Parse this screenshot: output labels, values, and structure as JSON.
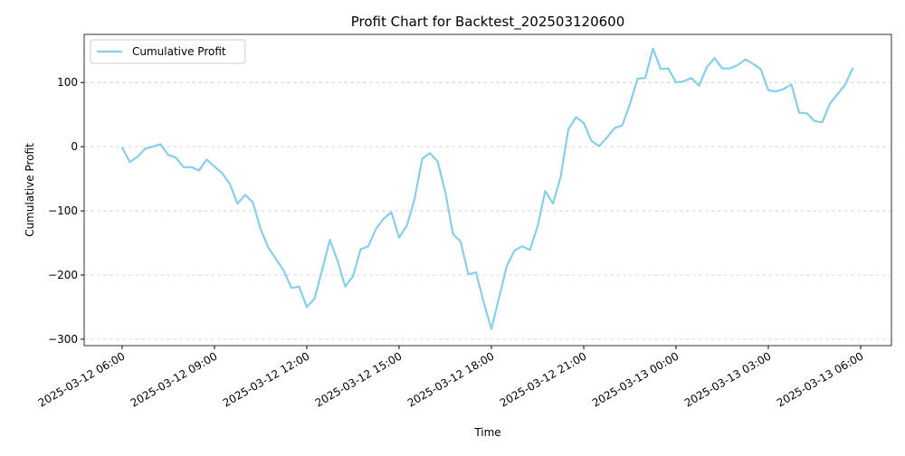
{
  "chart_data": {
    "type": "line",
    "title": "Profit Chart for Backtest_202503120600",
    "x_label": "Time",
    "y_label": "Cumulative Profit",
    "x": [
      "2025-03-12 06:00",
      "2025-03-12 06:15",
      "2025-03-12 06:30",
      "2025-03-12 06:45",
      "2025-03-12 07:00",
      "2025-03-12 07:15",
      "2025-03-12 07:30",
      "2025-03-12 07:45",
      "2025-03-12 08:00",
      "2025-03-12 08:15",
      "2025-03-12 08:30",
      "2025-03-12 08:45",
      "2025-03-12 09:00",
      "2025-03-12 09:15",
      "2025-03-12 09:30",
      "2025-03-12 09:45",
      "2025-03-12 10:00",
      "2025-03-12 10:15",
      "2025-03-12 10:30",
      "2025-03-12 10:45",
      "2025-03-12 11:00",
      "2025-03-12 11:15",
      "2025-03-12 11:30",
      "2025-03-12 11:45",
      "2025-03-12 12:00",
      "2025-03-12 12:15",
      "2025-03-12 12:30",
      "2025-03-12 12:45",
      "2025-03-12 13:00",
      "2025-03-12 13:15",
      "2025-03-12 13:30",
      "2025-03-12 13:45",
      "2025-03-12 14:00",
      "2025-03-12 14:15",
      "2025-03-12 14:30",
      "2025-03-12 14:45",
      "2025-03-12 15:00",
      "2025-03-12 15:15",
      "2025-03-12 15:30",
      "2025-03-12 15:45",
      "2025-03-12 16:00",
      "2025-03-12 16:15",
      "2025-03-12 16:30",
      "2025-03-12 16:45",
      "2025-03-12 17:00",
      "2025-03-12 17:15",
      "2025-03-12 17:30",
      "2025-03-12 17:45",
      "2025-03-12 18:00",
      "2025-03-12 18:15",
      "2025-03-12 18:30",
      "2025-03-12 18:45",
      "2025-03-12 19:00",
      "2025-03-12 19:15",
      "2025-03-12 19:30",
      "2025-03-12 19:45",
      "2025-03-12 20:00",
      "2025-03-12 20:15",
      "2025-03-12 20:30",
      "2025-03-12 20:45",
      "2025-03-12 21:00",
      "2025-03-12 21:15",
      "2025-03-12 21:30",
      "2025-03-12 21:45",
      "2025-03-12 22:00",
      "2025-03-12 22:15",
      "2025-03-12 22:30",
      "2025-03-12 22:45",
      "2025-03-12 23:00",
      "2025-03-12 23:15",
      "2025-03-12 23:30",
      "2025-03-12 23:45",
      "2025-03-13 00:00",
      "2025-03-13 00:15",
      "2025-03-13 00:30",
      "2025-03-13 00:45",
      "2025-03-13 01:00",
      "2025-03-13 01:15",
      "2025-03-13 01:30",
      "2025-03-13 01:45",
      "2025-03-13 02:00",
      "2025-03-13 02:15",
      "2025-03-13 02:30",
      "2025-03-13 02:45",
      "2025-03-13 03:00",
      "2025-03-13 03:15",
      "2025-03-13 03:30",
      "2025-03-13 03:45",
      "2025-03-13 04:00",
      "2025-03-13 04:15",
      "2025-03-13 04:30",
      "2025-03-13 04:45",
      "2025-03-13 05:00",
      "2025-03-13 05:15",
      "2025-03-13 05:30",
      "2025-03-13 05:45"
    ],
    "series": [
      {
        "name": "Cumulative Profit",
        "color": "#87ceeb",
        "values": [
          -1,
          -24,
          -16,
          -3,
          0,
          4,
          -13,
          -17,
          -32,
          -32,
          -37,
          -20,
          -31,
          -41,
          -58,
          -89,
          -75,
          -87,
          -128,
          -157,
          -175,
          -193,
          -220,
          -218,
          -250,
          -237,
          -192,
          -145,
          -178,
          -218,
          -202,
          -160,
          -155,
          -128,
          -112,
          -102,
          -142,
          -123,
          -82,
          -19,
          -10,
          -23,
          -70,
          -136,
          -148,
          -199,
          -196,
          -243,
          -284,
          -235,
          -186,
          -162,
          -155,
          -161,
          -124,
          -69,
          -89,
          -47,
          27,
          46,
          37,
          9,
          1,
          14,
          29,
          33,
          66,
          106,
          107,
          153,
          121,
          122,
          100,
          102,
          107,
          95,
          124,
          138,
          122,
          122,
          127,
          136,
          129,
          121,
          88,
          86,
          90,
          97,
          53,
          52,
          40,
          38,
          67,
          82,
          97,
          123
        ]
      }
    ],
    "xlim": [
      "2025-03-12 04:46",
      "2025-03-13 07:00"
    ],
    "xticks": [
      "2025-03-12 06:00",
      "2025-03-12 09:00",
      "2025-03-12 12:00",
      "2025-03-12 15:00",
      "2025-03-12 18:00",
      "2025-03-12 21:00",
      "2025-03-13 00:00",
      "2025-03-13 03:00",
      "2025-03-13 06:00"
    ],
    "ylim": [
      -310,
      175
    ],
    "yticks": [
      {
        "value": -300,
        "label": "−300"
      },
      {
        "value": -200,
        "label": "−200"
      },
      {
        "value": -100,
        "label": "−100"
      },
      0,
      100
    ],
    "grid": true,
    "legend": "upper-left"
  }
}
